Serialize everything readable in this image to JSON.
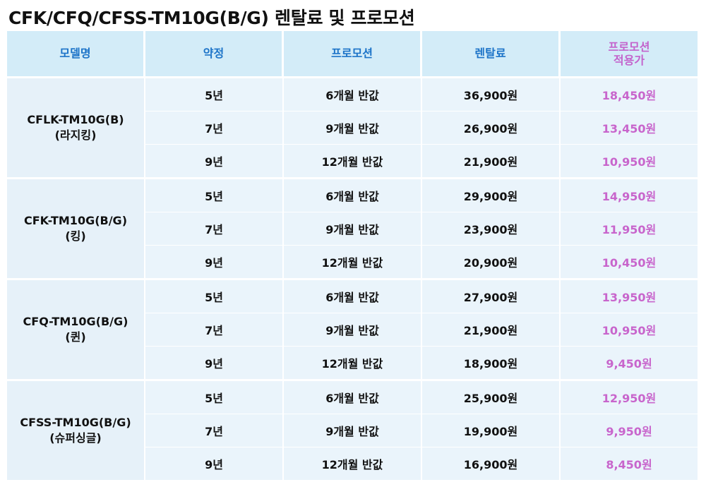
{
  "title": "CFK/CFQ/CFSS-TM10G(B/G) 렌탈료 및 프로모션",
  "table": {
    "headers": {
      "model": "모델명",
      "contract": "약정",
      "promotion": "프로모션",
      "rental_fee": "렌탈료",
      "promo_price_line1": "프로모션",
      "promo_price_line2": "적용가"
    },
    "groups": [
      {
        "model_line1": "CFLK-TM10G(B)",
        "model_line2": "(라지킹)",
        "rows": [
          {
            "contract": "5년",
            "promotion": "6개월 반값",
            "rental_fee": "36,900원",
            "promo_price": "18,450원"
          },
          {
            "contract": "7년",
            "promotion": "9개월 반값",
            "rental_fee": "26,900원",
            "promo_price": "13,450원"
          },
          {
            "contract": "9년",
            "promotion": "12개월 반값",
            "rental_fee": "21,900원",
            "promo_price": "10,950원"
          }
        ]
      },
      {
        "model_line1": "CFK-TM10G(B/G)",
        "model_line2": "(킹)",
        "rows": [
          {
            "contract": "5년",
            "promotion": "6개월 반값",
            "rental_fee": "29,900원",
            "promo_price": "14,950원"
          },
          {
            "contract": "7년",
            "promotion": "9개월 반값",
            "rental_fee": "23,900원",
            "promo_price": "11,950원"
          },
          {
            "contract": "9년",
            "promotion": "12개월 반값",
            "rental_fee": "20,900원",
            "promo_price": "10,450원"
          }
        ]
      },
      {
        "model_line1": "CFQ-TM10G(B/G)",
        "model_line2": "(퀸)",
        "rows": [
          {
            "contract": "5년",
            "promotion": "6개월 반값",
            "rental_fee": "27,900원",
            "promo_price": "13,950원"
          },
          {
            "contract": "7년",
            "promotion": "9개월 반값",
            "rental_fee": "21,900원",
            "promo_price": "10,950원"
          },
          {
            "contract": "9년",
            "promotion": "12개월 반값",
            "rental_fee": "18,900원",
            "promo_price": "9,450원"
          }
        ]
      },
      {
        "model_line1": "CFSS-TM10G(B/G)",
        "model_line2": "(슈퍼싱글)",
        "rows": [
          {
            "contract": "5년",
            "promotion": "6개월 반값",
            "rental_fee": "25,900원",
            "promo_price": "12,950원"
          },
          {
            "contract": "7년",
            "promotion": "9개월 반값",
            "rental_fee": "19,900원",
            "promo_price": "9,950원"
          },
          {
            "contract": "9년",
            "promotion": "12개월 반값",
            "rental_fee": "16,900원",
            "promo_price": "8,450원"
          }
        ]
      }
    ]
  },
  "colors": {
    "header_bg": "#d3ecf8",
    "header_text": "#1d74c8",
    "promo_text": "#c865cc",
    "body_bg": "#eaf4fb"
  }
}
